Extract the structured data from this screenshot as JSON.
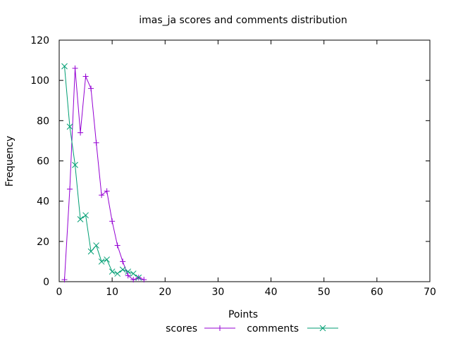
{
  "chart_data": {
    "type": "line",
    "title": "imas_ja scores and comments distribution",
    "xlabel": "Points",
    "ylabel": "Frequency",
    "xlim": [
      0,
      70
    ],
    "ylim": [
      0,
      120
    ],
    "xticks": [
      0,
      10,
      20,
      30,
      40,
      50,
      60,
      70
    ],
    "yticks": [
      0,
      20,
      40,
      60,
      80,
      100,
      120
    ],
    "grid": false,
    "legend": "bottom-center",
    "series": [
      {
        "name": "scores",
        "color": "#9400d3",
        "marker": "plus",
        "x": [
          1,
          2,
          3,
          4,
          5,
          6,
          7,
          8,
          9,
          10,
          11,
          12,
          13,
          14,
          15,
          16
        ],
        "y": [
          1,
          46,
          106,
          74,
          102,
          96,
          69,
          43,
          45,
          30,
          18,
          10,
          3,
          1,
          2,
          1
        ]
      },
      {
        "name": "comments",
        "color": "#009e73",
        "marker": "cross",
        "x": [
          1,
          2,
          3,
          4,
          5,
          6,
          7,
          8,
          9,
          10,
          11,
          12,
          13,
          14,
          15
        ],
        "y": [
          107,
          77,
          58,
          31,
          33,
          15,
          18,
          10,
          11,
          5,
          4,
          6,
          5,
          4,
          2
        ]
      }
    ]
  }
}
